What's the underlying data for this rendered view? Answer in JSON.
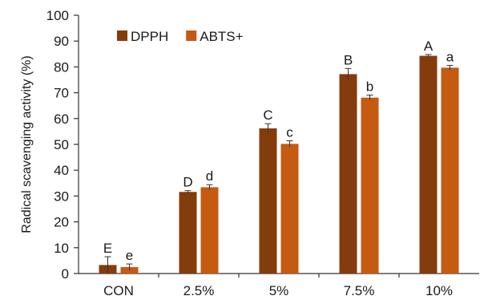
{
  "chart_data": {
    "type": "bar",
    "ylabel": "Radical scavenging activity (%)",
    "xlabel": "",
    "ylim": [
      0,
      100
    ],
    "yticks": [
      0,
      10,
      20,
      30,
      40,
      50,
      60,
      70,
      80,
      90,
      100
    ],
    "categories": [
      "CON",
      "2.5%",
      "5%",
      "7.5%",
      "10%"
    ],
    "legend_position": "top-left",
    "grid": false,
    "series": [
      {
        "name": "DPPH",
        "color": "#843C0C",
        "values": [
          3.3,
          31.6,
          56.2,
          77.2,
          84.3
        ],
        "errors": [
          3.2,
          0.5,
          1.8,
          2.2,
          0.5
        ],
        "letters": [
          "E",
          "D",
          "C",
          "B",
          "A"
        ]
      },
      {
        "name": "ABTS+",
        "color": "#C55A11",
        "values": [
          2.5,
          33.4,
          50.2,
          68.1,
          79.7
        ],
        "errors": [
          1.2,
          1.0,
          1.2,
          1.0,
          0.9
        ],
        "letters": [
          "e",
          "d",
          "c",
          "b",
          "a"
        ]
      }
    ]
  }
}
